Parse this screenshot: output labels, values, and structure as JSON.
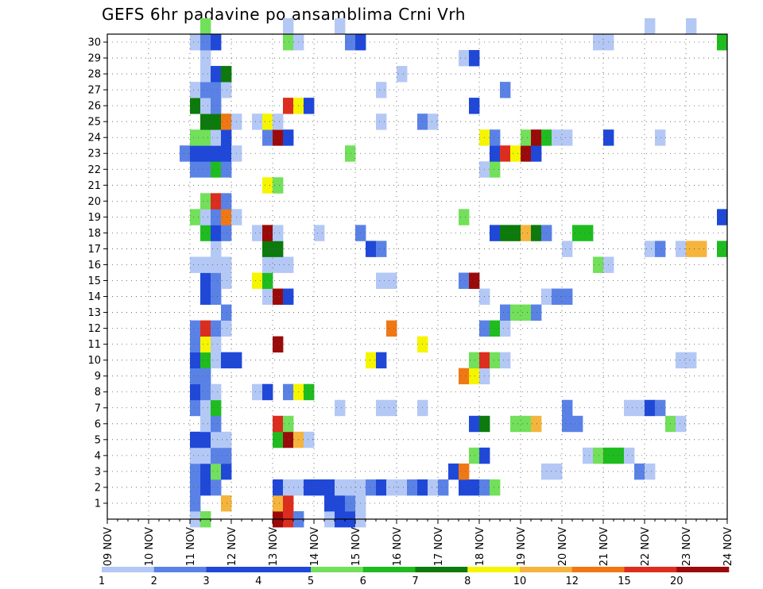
{
  "chart_data": {
    "type": "heatmap",
    "title": "GEFS 6hr padavine po ansamblima Crni Vrh",
    "xlabel": "",
    "ylabel": "",
    "y_ticks": [
      1,
      2,
      3,
      4,
      5,
      6,
      7,
      8,
      9,
      10,
      11,
      12,
      13,
      14,
      15,
      16,
      17,
      18,
      19,
      20,
      21,
      22,
      23,
      24,
      25,
      26,
      27,
      28,
      29,
      30
    ],
    "x_ticks": [
      "09 NOV",
      "10 NOV",
      "11 NOV",
      "12 NOV",
      "13 NOV",
      "14 NOV",
      "15 NOV",
      "16 NOV",
      "17 NOV",
      "18 NOV",
      "19 NOV",
      "20 NOV",
      "21 NOV",
      "22 NOV",
      "23 NOV",
      "24 NOV"
    ],
    "xlim": [
      0,
      60
    ],
    "ylim": [
      0,
      30
    ],
    "grid": true,
    "legend": {
      "placement": "bottom",
      "labels": [
        "1",
        "2",
        "3",
        "4",
        "5",
        "6",
        "7",
        "8",
        "10",
        "12",
        "15",
        "20"
      ],
      "colors": [
        "#b4c8f5",
        "#5a82e6",
        "#1f48d8",
        "#1f48d8",
        "#72e05a",
        "#1fbc1f",
        "#0c7a0c",
        "#f5f500",
        "#f5b43c",
        "#f07814",
        "#dc2d1e",
        "#9b0a0a"
      ]
    },
    "colors": {
      "1": "#b4c8f5",
      "2": "#5a82e6",
      "3": "#1f48d8",
      "5": "#72e05a",
      "6": "#1fbc1f",
      "7": "#0c7a0c",
      "8": "#f5f500",
      "10": "#f5b43c",
      "12": "#f07814",
      "15": "#dc2d1e",
      "20": "#9b0a0a"
    },
    "cells": [
      [
        8,
        0,
        1
      ],
      [
        9,
        0,
        5
      ],
      [
        16,
        0,
        20
      ],
      [
        17,
        0,
        15
      ],
      [
        18,
        0,
        2
      ],
      [
        21,
        0,
        1
      ],
      [
        22,
        0,
        3
      ],
      [
        23,
        0,
        3
      ],
      [
        24,
        0,
        1
      ],
      [
        8,
        1,
        2
      ],
      [
        11,
        1,
        10
      ],
      [
        16,
        1,
        10
      ],
      [
        17,
        1,
        15
      ],
      [
        21,
        1,
        3
      ],
      [
        22,
        1,
        3
      ],
      [
        23,
        1,
        2
      ],
      [
        24,
        1,
        1
      ],
      [
        8,
        2,
        2
      ],
      [
        9,
        2,
        3
      ],
      [
        10,
        2,
        2
      ],
      [
        16,
        2,
        3
      ],
      [
        17,
        2,
        1
      ],
      [
        18,
        2,
        1
      ],
      [
        19,
        2,
        3
      ],
      [
        20,
        2,
        3
      ],
      [
        21,
        2,
        3
      ],
      [
        22,
        2,
        1
      ],
      [
        23,
        2,
        1
      ],
      [
        24,
        2,
        1
      ],
      [
        25,
        2,
        2
      ],
      [
        26,
        2,
        3
      ],
      [
        27,
        2,
        1
      ],
      [
        28,
        2,
        1
      ],
      [
        29,
        2,
        2
      ],
      [
        30,
        2,
        3
      ],
      [
        31,
        2,
        1
      ],
      [
        32,
        2,
        2
      ],
      [
        34,
        2,
        3
      ],
      [
        35,
        2,
        3
      ],
      [
        36,
        2,
        2
      ],
      [
        37,
        2,
        5
      ],
      [
        8,
        3,
        2
      ],
      [
        9,
        3,
        3
      ],
      [
        10,
        3,
        5
      ],
      [
        11,
        3,
        3
      ],
      [
        33,
        3,
        3
      ],
      [
        34,
        3,
        12
      ],
      [
        42,
        3,
        1
      ],
      [
        43,
        3,
        1
      ],
      [
        51,
        3,
        2
      ],
      [
        52,
        3,
        1
      ],
      [
        8,
        4,
        1
      ],
      [
        9,
        4,
        1
      ],
      [
        10,
        4,
        2
      ],
      [
        11,
        4,
        2
      ],
      [
        35,
        4,
        5
      ],
      [
        36,
        4,
        3
      ],
      [
        46,
        4,
        1
      ],
      [
        47,
        4,
        5
      ],
      [
        48,
        4,
        6
      ],
      [
        49,
        4,
        6
      ],
      [
        50,
        4,
        1
      ],
      [
        8,
        5,
        3
      ],
      [
        9,
        5,
        3
      ],
      [
        10,
        5,
        1
      ],
      [
        11,
        5,
        1
      ],
      [
        16,
        5,
        6
      ],
      [
        17,
        5,
        20
      ],
      [
        18,
        5,
        10
      ],
      [
        19,
        5,
        1
      ],
      [
        9,
        6,
        1
      ],
      [
        10,
        6,
        2
      ],
      [
        16,
        6,
        15
      ],
      [
        17,
        6,
        5
      ],
      [
        35,
        6,
        3
      ],
      [
        36,
        6,
        7
      ],
      [
        39,
        6,
        5
      ],
      [
        40,
        6,
        5
      ],
      [
        41,
        6,
        10
      ],
      [
        44,
        6,
        2
      ],
      [
        45,
        6,
        2
      ],
      [
        54,
        6,
        5
      ],
      [
        55,
        6,
        1
      ],
      [
        8,
        7,
        2
      ],
      [
        9,
        7,
        1
      ],
      [
        10,
        7,
        6
      ],
      [
        22,
        7,
        1
      ],
      [
        26,
        7,
        1
      ],
      [
        27,
        7,
        1
      ],
      [
        30,
        7,
        1
      ],
      [
        44,
        7,
        2
      ],
      [
        50,
        7,
        1
      ],
      [
        51,
        7,
        1
      ],
      [
        52,
        7,
        3
      ],
      [
        53,
        7,
        2
      ],
      [
        8,
        8,
        3
      ],
      [
        9,
        8,
        2
      ],
      [
        10,
        8,
        1
      ],
      [
        14,
        8,
        1
      ],
      [
        15,
        8,
        3
      ],
      [
        17,
        8,
        2
      ],
      [
        18,
        8,
        8
      ],
      [
        19,
        8,
        6
      ],
      [
        8,
        9,
        2
      ],
      [
        9,
        9,
        2
      ],
      [
        34,
        9,
        12
      ],
      [
        35,
        9,
        8
      ],
      [
        36,
        9,
        1
      ],
      [
        8,
        10,
        3
      ],
      [
        9,
        10,
        6
      ],
      [
        10,
        10,
        1
      ],
      [
        11,
        10,
        3
      ],
      [
        12,
        10,
        3
      ],
      [
        25,
        10,
        8
      ],
      [
        26,
        10,
        3
      ],
      [
        35,
        10,
        5
      ],
      [
        36,
        10,
        15
      ],
      [
        37,
        10,
        5
      ],
      [
        38,
        10,
        1
      ],
      [
        55,
        10,
        1
      ],
      [
        56,
        10,
        1
      ],
      [
        8,
        11,
        2
      ],
      [
        9,
        11,
        8
      ],
      [
        10,
        11,
        1
      ],
      [
        16,
        11,
        20
      ],
      [
        30,
        11,
        8
      ],
      [
        8,
        12,
        2
      ],
      [
        9,
        12,
        15
      ],
      [
        10,
        12,
        2
      ],
      [
        11,
        12,
        1
      ],
      [
        27,
        12,
        12
      ],
      [
        36,
        12,
        2
      ],
      [
        37,
        12,
        6
      ],
      [
        38,
        12,
        1
      ],
      [
        11,
        13,
        2
      ],
      [
        38,
        13,
        2
      ],
      [
        39,
        13,
        5
      ],
      [
        40,
        13,
        5
      ],
      [
        41,
        13,
        2
      ],
      [
        9,
        14,
        3
      ],
      [
        10,
        14,
        2
      ],
      [
        15,
        14,
        1
      ],
      [
        16,
        14,
        20
      ],
      [
        17,
        14,
        3
      ],
      [
        36,
        14,
        1
      ],
      [
        42,
        14,
        1
      ],
      [
        43,
        14,
        2
      ],
      [
        44,
        14,
        2
      ],
      [
        9,
        15,
        3
      ],
      [
        10,
        15,
        2
      ],
      [
        11,
        15,
        1
      ],
      [
        14,
        15,
        8
      ],
      [
        15,
        15,
        6
      ],
      [
        26,
        15,
        1
      ],
      [
        27,
        15,
        1
      ],
      [
        34,
        15,
        2
      ],
      [
        35,
        15,
        20
      ],
      [
        8,
        16,
        1
      ],
      [
        9,
        16,
        1
      ],
      [
        10,
        16,
        1
      ],
      [
        11,
        16,
        1
      ],
      [
        15,
        16,
        1
      ],
      [
        16,
        16,
        1
      ],
      [
        17,
        16,
        1
      ],
      [
        47,
        16,
        5
      ],
      [
        48,
        16,
        1
      ],
      [
        10,
        17,
        1
      ],
      [
        15,
        17,
        7
      ],
      [
        16,
        17,
        7
      ],
      [
        25,
        17,
        3
      ],
      [
        26,
        17,
        2
      ],
      [
        44,
        17,
        1
      ],
      [
        52,
        17,
        1
      ],
      [
        53,
        17,
        2
      ],
      [
        55,
        17,
        1
      ],
      [
        56,
        17,
        10
      ],
      [
        57,
        17,
        10
      ],
      [
        59,
        17,
        6
      ],
      [
        9,
        18,
        6
      ],
      [
        10,
        18,
        3
      ],
      [
        11,
        18,
        2
      ],
      [
        14,
        18,
        1
      ],
      [
        15,
        18,
        20
      ],
      [
        16,
        18,
        1
      ],
      [
        20,
        18,
        1
      ],
      [
        24,
        18,
        2
      ],
      [
        37,
        18,
        3
      ],
      [
        38,
        18,
        7
      ],
      [
        39,
        18,
        7
      ],
      [
        40,
        18,
        10
      ],
      [
        41,
        18,
        7
      ],
      [
        42,
        18,
        2
      ],
      [
        45,
        18,
        6
      ],
      [
        46,
        18,
        6
      ],
      [
        8,
        19,
        5
      ],
      [
        9,
        19,
        1
      ],
      [
        10,
        19,
        2
      ],
      [
        11,
        19,
        12
      ],
      [
        12,
        19,
        1
      ],
      [
        34,
        19,
        5
      ],
      [
        59,
        19,
        3
      ],
      [
        9,
        20,
        5
      ],
      [
        10,
        20,
        15
      ],
      [
        11,
        20,
        2
      ],
      [
        15,
        21,
        8
      ],
      [
        16,
        21,
        5
      ],
      [
        8,
        22,
        2
      ],
      [
        9,
        22,
        2
      ],
      [
        10,
        22,
        6
      ],
      [
        11,
        22,
        2
      ],
      [
        36,
        22,
        1
      ],
      [
        37,
        22,
        5
      ],
      [
        7,
        23,
        2
      ],
      [
        8,
        23,
        3
      ],
      [
        9,
        23,
        3
      ],
      [
        10,
        23,
        3
      ],
      [
        11,
        23,
        3
      ],
      [
        12,
        23,
        1
      ],
      [
        23,
        23,
        5
      ],
      [
        37,
        23,
        3
      ],
      [
        38,
        23,
        15
      ],
      [
        39,
        23,
        8
      ],
      [
        40,
        23,
        20
      ],
      [
        41,
        23,
        3
      ],
      [
        8,
        24,
        5
      ],
      [
        9,
        24,
        5
      ],
      [
        10,
        24,
        1
      ],
      [
        11,
        24,
        3
      ],
      [
        15,
        24,
        2
      ],
      [
        16,
        24,
        20
      ],
      [
        17,
        24,
        3
      ],
      [
        36,
        24,
        8
      ],
      [
        37,
        24,
        2
      ],
      [
        40,
        24,
        5
      ],
      [
        41,
        24,
        20
      ],
      [
        42,
        24,
        6
      ],
      [
        43,
        24,
        1
      ],
      [
        44,
        24,
        1
      ],
      [
        48,
        24,
        3
      ],
      [
        53,
        24,
        1
      ],
      [
        9,
        25,
        7
      ],
      [
        10,
        25,
        7
      ],
      [
        11,
        25,
        12
      ],
      [
        12,
        25,
        1
      ],
      [
        14,
        25,
        1
      ],
      [
        15,
        25,
        8
      ],
      [
        16,
        25,
        1
      ],
      [
        26,
        25,
        1
      ],
      [
        30,
        25,
        2
      ],
      [
        31,
        25,
        1
      ],
      [
        8,
        26,
        7
      ],
      [
        9,
        26,
        1
      ],
      [
        10,
        26,
        2
      ],
      [
        17,
        26,
        15
      ],
      [
        18,
        26,
        8
      ],
      [
        19,
        26,
        3
      ],
      [
        35,
        26,
        3
      ],
      [
        8,
        27,
        1
      ],
      [
        9,
        27,
        2
      ],
      [
        10,
        27,
        2
      ],
      [
        11,
        27,
        1
      ],
      [
        26,
        27,
        1
      ],
      [
        38,
        27,
        2
      ],
      [
        9,
        28,
        1
      ],
      [
        10,
        28,
        3
      ],
      [
        11,
        28,
        7
      ],
      [
        28,
        28,
        1
      ],
      [
        9,
        29,
        1
      ],
      [
        34,
        29,
        1
      ],
      [
        35,
        29,
        3
      ],
      [
        8,
        30,
        1
      ],
      [
        9,
        30,
        2
      ],
      [
        10,
        30,
        3
      ],
      [
        17,
        30,
        5
      ],
      [
        18,
        30,
        1
      ],
      [
        23,
        30,
        2
      ],
      [
        24,
        30,
        3
      ],
      [
        47,
        30,
        1
      ],
      [
        48,
        30,
        1
      ],
      [
        59,
        30,
        6
      ],
      [
        9,
        31,
        5
      ],
      [
        17,
        31,
        1
      ],
      [
        22,
        31,
        1
      ],
      [
        52,
        31,
        1
      ],
      [
        56,
        31,
        1
      ]
    ]
  }
}
